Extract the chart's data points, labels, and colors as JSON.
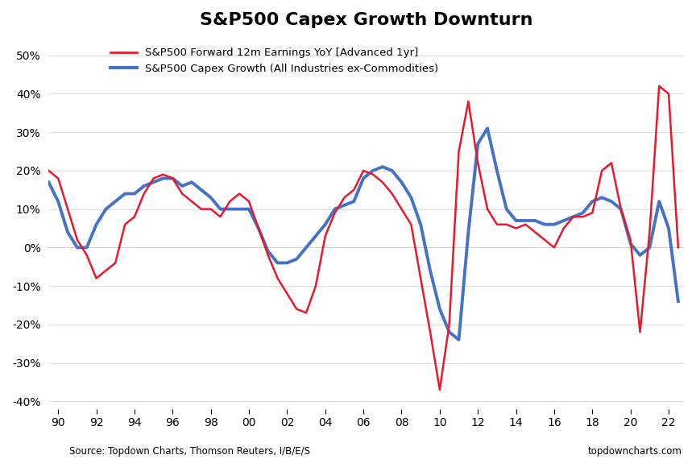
{
  "title": "S&P500 Capex Growth Downturn",
  "legend_red": "S&P500 Forward 12m Earnings YoY [Advanced 1yr]",
  "legend_blue": "S&P500 Capex Growth (All Industries ex-Commodities)",
  "source_left": "Source: Topdown Charts, Thomson Reuters, I/B/E/S",
  "source_right": "topdowncharts.com",
  "background_color": "#ffffff",
  "red_color": "#e8192c",
  "blue_color": "#4472c4",
  "ylim": [
    -0.42,
    0.55
  ],
  "yticks": [
    -0.4,
    -0.3,
    -0.2,
    -0.1,
    0.0,
    0.1,
    0.2,
    0.3,
    0.4,
    0.5
  ],
  "xticks": [
    1990,
    1992,
    1994,
    1996,
    1998,
    2000,
    2002,
    2004,
    2006,
    2008,
    2010,
    2012,
    2014,
    2016,
    2018,
    2020,
    2022
  ],
  "xlim": [
    1989.5,
    2022.8
  ],
  "red_x": [
    1989.5,
    1990.0,
    1990.5,
    1991.0,
    1991.5,
    1992.0,
    1992.5,
    1993.0,
    1993.5,
    1994.0,
    1994.5,
    1995.0,
    1995.5,
    1996.0,
    1996.5,
    1997.0,
    1997.5,
    1998.0,
    1998.5,
    1999.0,
    1999.5,
    2000.0,
    2000.5,
    2001.0,
    2001.5,
    2002.0,
    2002.5,
    2003.0,
    2003.5,
    2004.0,
    2004.5,
    2005.0,
    2005.5,
    2006.0,
    2006.5,
    2007.0,
    2007.5,
    2008.0,
    2008.5,
    2009.0,
    2009.5,
    2010.0,
    2010.5,
    2011.0,
    2011.5,
    2012.0,
    2012.5,
    2013.0,
    2013.5,
    2014.0,
    2014.5,
    2015.0,
    2015.5,
    2016.0,
    2016.5,
    2017.0,
    2017.5,
    2018.0,
    2018.5,
    2019.0,
    2019.5,
    2020.0,
    2020.5,
    2021.0,
    2021.5,
    2022.0,
    2022.5
  ],
  "red_y": [
    0.2,
    0.18,
    0.1,
    0.02,
    -0.02,
    -0.08,
    -0.06,
    -0.04,
    0.06,
    0.08,
    0.14,
    0.18,
    0.19,
    0.18,
    0.14,
    0.12,
    0.1,
    0.1,
    0.08,
    0.12,
    0.14,
    0.12,
    0.05,
    -0.02,
    -0.08,
    -0.12,
    -0.16,
    -0.17,
    -0.1,
    0.03,
    0.09,
    0.13,
    0.15,
    0.2,
    0.19,
    0.17,
    0.14,
    0.1,
    0.06,
    -0.08,
    -0.22,
    -0.37,
    -0.2,
    0.25,
    0.38,
    0.22,
    0.1,
    0.06,
    0.06,
    0.05,
    0.06,
    0.04,
    0.02,
    0.0,
    0.05,
    0.08,
    0.08,
    0.09,
    0.2,
    0.22,
    0.1,
    0.02,
    -0.22,
    0.04,
    0.42,
    0.4,
    0.0
  ],
  "blue_x": [
    1989.5,
    1990.0,
    1990.5,
    1991.0,
    1991.5,
    1992.0,
    1992.5,
    1993.0,
    1993.5,
    1994.0,
    1994.5,
    1995.0,
    1995.5,
    1996.0,
    1996.5,
    1997.0,
    1997.5,
    1998.0,
    1998.5,
    1999.0,
    1999.5,
    2000.0,
    2000.5,
    2001.0,
    2001.5,
    2002.0,
    2002.5,
    2003.0,
    2003.5,
    2004.0,
    2004.5,
    2005.0,
    2005.5,
    2006.0,
    2006.5,
    2007.0,
    2007.5,
    2008.0,
    2008.5,
    2009.0,
    2009.5,
    2010.0,
    2010.5,
    2011.0,
    2011.5,
    2012.0,
    2012.5,
    2013.0,
    2013.5,
    2014.0,
    2014.5,
    2015.0,
    2015.5,
    2016.0,
    2016.5,
    2017.0,
    2017.5,
    2018.0,
    2018.5,
    2019.0,
    2019.5,
    2020.0,
    2020.5,
    2021.0,
    2021.5,
    2022.0,
    2022.5
  ],
  "blue_y": [
    0.17,
    0.12,
    0.04,
    0.0,
    0.0,
    0.06,
    0.1,
    0.12,
    0.14,
    0.14,
    0.16,
    0.17,
    0.18,
    0.18,
    0.16,
    0.17,
    0.15,
    0.13,
    0.1,
    0.1,
    0.1,
    0.1,
    0.05,
    -0.01,
    -0.04,
    -0.04,
    -0.03,
    0.0,
    0.03,
    0.06,
    0.1,
    0.11,
    0.12,
    0.18,
    0.2,
    0.21,
    0.2,
    0.17,
    0.13,
    0.06,
    -0.06,
    -0.16,
    -0.22,
    -0.24,
    0.04,
    0.27,
    0.31,
    0.2,
    0.1,
    0.07,
    0.07,
    0.07,
    0.06,
    0.06,
    0.07,
    0.08,
    0.09,
    0.12,
    0.13,
    0.12,
    0.1,
    0.01,
    -0.02,
    0.0,
    0.12,
    0.05,
    -0.14
  ]
}
